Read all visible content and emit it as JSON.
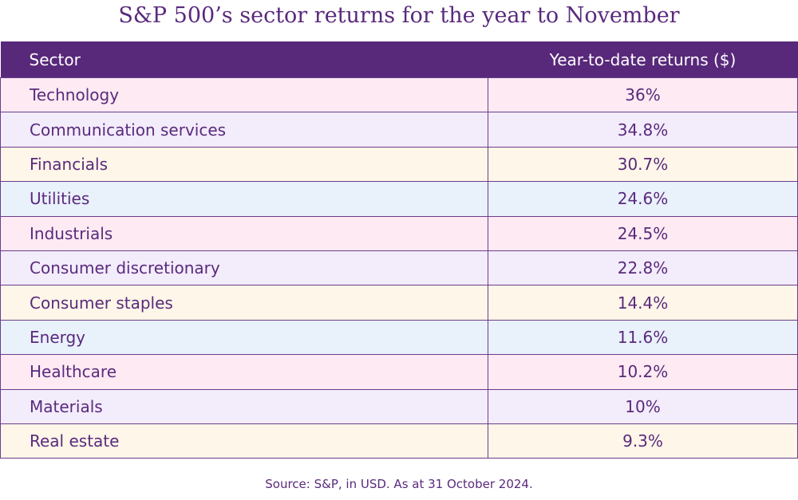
{
  "title": "S&P 500’s sector returns for the year to November",
  "source": "Source: S&P, in USD. As at 31 October 2024.",
  "colors": {
    "header_bg": "#58287a",
    "text": "#5a2a7c",
    "row_cycle": [
      "#fdeaf3",
      "#f3ecfb",
      "#fef6e8",
      "#e9f1fb"
    ]
  },
  "chart_data": {
    "type": "table",
    "columns": [
      "Sector",
      "Year-to-date returns ($)"
    ],
    "rows": [
      [
        "Technology",
        "36%"
      ],
      [
        "Communication services",
        "34.8%"
      ],
      [
        "Financials",
        "30.7%"
      ],
      [
        "Utilities",
        "24.6%"
      ],
      [
        "Industrials",
        "24.5%"
      ],
      [
        "Consumer discretionary",
        "22.8%"
      ],
      [
        "Consumer staples",
        "14.4%"
      ],
      [
        "Energy",
        "11.6%"
      ],
      [
        "Healthcare",
        "10.2%"
      ],
      [
        "Materials",
        "10%"
      ],
      [
        "Real estate",
        "9.3%"
      ]
    ]
  }
}
